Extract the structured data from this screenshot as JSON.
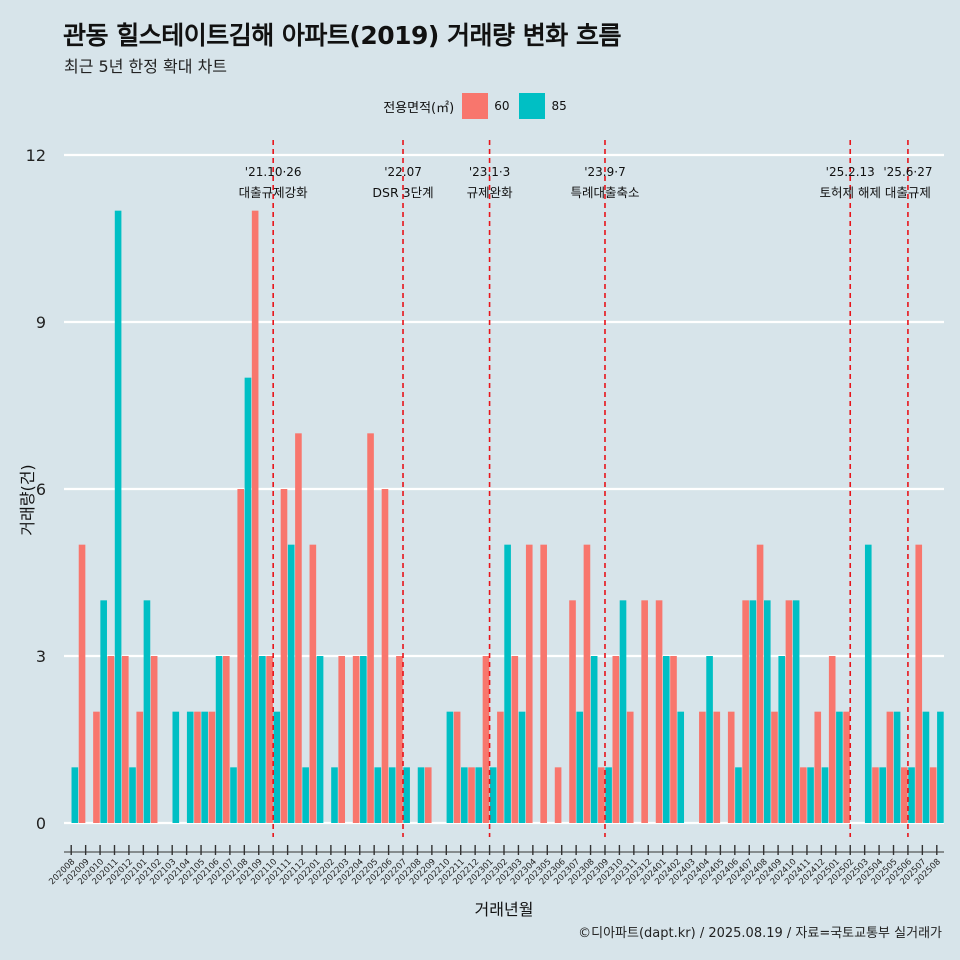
{
  "title": "관동 힐스테이트김해 아파트(2019) 거래량 변화 흐름",
  "subtitle": "최근 5년 한정 확대 차트",
  "footer": "©디아파트(dapt.kr) / 2025.08.19 / 자료=국토교통부 실거래가",
  "legend": {
    "title": "전용면적(㎡)",
    "items": [
      {
        "label": "60",
        "color": "#f8766d"
      },
      {
        "label": "85",
        "color": "#00bfc4"
      }
    ]
  },
  "chart_data": {
    "type": "bar",
    "xlabel": "거래년월",
    "ylabel": "거래량(건)",
    "ylim": [
      0,
      12
    ],
    "yticks": [
      0,
      3,
      6,
      9,
      12
    ],
    "categories": [
      "202008",
      "202009",
      "202010",
      "202011",
      "202012",
      "202101",
      "202102",
      "202103",
      "202104",
      "202105",
      "202106",
      "202107",
      "202108",
      "202109",
      "202110",
      "202111",
      "202112",
      "202201",
      "202202",
      "202203",
      "202204",
      "202205",
      "202206",
      "202207",
      "202208",
      "202209",
      "202210",
      "202211",
      "202212",
      "202301",
      "202302",
      "202303",
      "202304",
      "202305",
      "202306",
      "202307",
      "202308",
      "202309",
      "202310",
      "202311",
      "202312",
      "202401",
      "202402",
      "202403",
      "202404",
      "202405",
      "202406",
      "202407",
      "202408",
      "202409",
      "202410",
      "202411",
      "202412",
      "202501",
      "202502",
      "202503",
      "202504",
      "202505",
      "202506",
      "202507",
      "202508"
    ],
    "series": [
      {
        "name": "60",
        "color": "#f8766d",
        "values": [
          0,
          5,
          2,
          3,
          3,
          2,
          3,
          0,
          0,
          2,
          2,
          3,
          6,
          11,
          3,
          6,
          7,
          5,
          0,
          3,
          3,
          7,
          6,
          3,
          0,
          1,
          0,
          2,
          1,
          3,
          2,
          3,
          5,
          5,
          1,
          4,
          5,
          1,
          3,
          2,
          4,
          4,
          3,
          0,
          2,
          2,
          2,
          4,
          5,
          2,
          4,
          1,
          2,
          3,
          2,
          0,
          1,
          2,
          1,
          5,
          1
        ]
      },
      {
        "name": "85",
        "color": "#00bfc4",
        "values": [
          1,
          0,
          4,
          11,
          1,
          4,
          0,
          2,
          2,
          2,
          3,
          1,
          8,
          3,
          2,
          5,
          1,
          3,
          1,
          0,
          3,
          1,
          1,
          1,
          1,
          0,
          2,
          1,
          1,
          1,
          5,
          2,
          0,
          0,
          0,
          2,
          3,
          1,
          4,
          0,
          0,
          3,
          2,
          0,
          3,
          0,
          1,
          4,
          4,
          3,
          4,
          1,
          1,
          2,
          0,
          5,
          1,
          2,
          1,
          2,
          2
        ]
      }
    ],
    "annotations": [
      {
        "x": "202110",
        "line1": "'21.10·26",
        "line2": "대출규제강화"
      },
      {
        "x": "202207",
        "line1": "'22.07",
        "line2": "DSR 3단계"
      },
      {
        "x": "202301",
        "line1": "'23.1·3",
        "line2": "규제완화"
      },
      {
        "x": "202309",
        "line1": "'23.9·7",
        "line2": "특례대출축소"
      },
      {
        "x": "202502",
        "line1": "'25.2.13",
        "line2": "토허제 해제"
      },
      {
        "x": "202506",
        "line1": "'25.6·27",
        "line2": "대출규제"
      }
    ],
    "annotation_line_color": "#e8141a",
    "grid": true
  }
}
